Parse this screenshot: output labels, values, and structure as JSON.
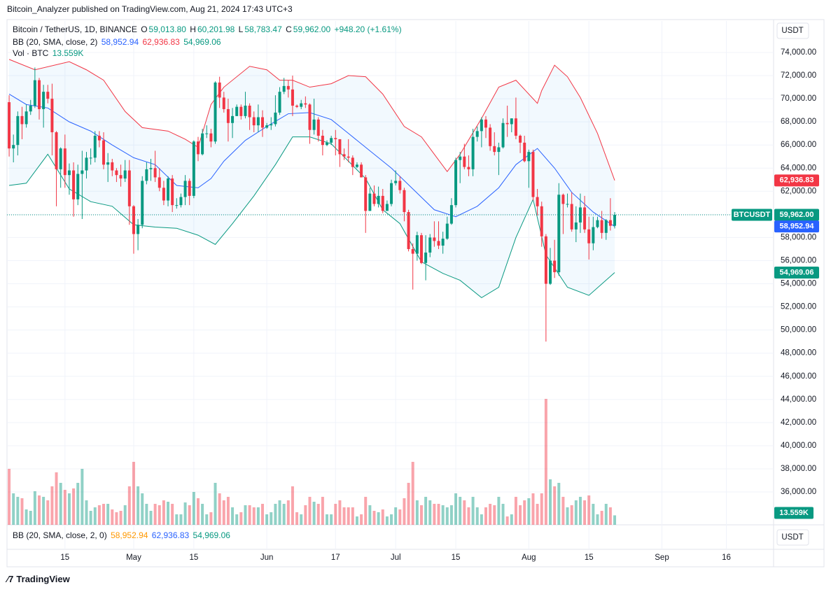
{
  "header": {
    "publisher": "Bitcoin_Analyzer published on TradingView.com, Aug 21, 2024 17:43 UTC+3",
    "symbol": "Bitcoin / TetherUS, 1D, BINANCE",
    "ohlc": [
      {
        "key": "O",
        "value": "59,013.80"
      },
      {
        "key": "H",
        "value": "60,201.98"
      },
      {
        "key": "L",
        "value": "58,783.47"
      },
      {
        "key": "C",
        "value": "59,962.00"
      }
    ],
    "change": "+948.20 (+1.61%)",
    "bb_label": "BB (20, SMA, close, 2)",
    "bb_values": [
      "58,952.94",
      "62,936.83",
      "54,969.06"
    ],
    "vol_label": "Vol · BTC",
    "vol_value": "13.559K",
    "lower_label": "BB (20, SMA, close, 2, 0)",
    "currency": "USDT",
    "symbol_badge": "BTCUSDT",
    "price_badge": "59,962.00",
    "brand": "TradingView"
  },
  "chart_data": {
    "type": "candlestick",
    "up_color": "#089981",
    "down_color": "#f23645",
    "x": [
      "2024-04-02",
      "2024-04-03",
      "2024-04-04",
      "2024-04-05",
      "2024-04-06",
      "2024-04-07",
      "2024-04-08",
      "2024-04-09",
      "2024-04-10",
      "2024-04-11",
      "2024-04-12",
      "2024-04-13",
      "2024-04-14",
      "2024-04-15",
      "2024-04-16",
      "2024-04-17",
      "2024-04-18",
      "2024-04-19",
      "2024-04-20",
      "2024-04-21",
      "2024-04-22",
      "2024-04-23",
      "2024-04-24",
      "2024-04-25",
      "2024-04-26",
      "2024-04-27",
      "2024-04-28",
      "2024-04-29",
      "2024-04-30",
      "2024-05-01",
      "2024-05-02",
      "2024-05-03",
      "2024-05-04",
      "2024-05-05",
      "2024-05-06",
      "2024-05-07",
      "2024-05-08",
      "2024-05-09",
      "2024-05-10",
      "2024-05-11",
      "2024-05-12",
      "2024-05-13",
      "2024-05-14",
      "2024-05-15",
      "2024-05-16",
      "2024-05-17",
      "2024-05-18",
      "2024-05-19",
      "2024-05-20",
      "2024-05-21",
      "2024-05-22",
      "2024-05-23",
      "2024-05-24",
      "2024-05-25",
      "2024-05-26",
      "2024-05-27",
      "2024-05-28",
      "2024-05-29",
      "2024-05-30",
      "2024-05-31",
      "2024-06-01",
      "2024-06-02",
      "2024-06-03",
      "2024-06-04",
      "2024-06-05",
      "2024-06-06",
      "2024-06-07",
      "2024-06-08",
      "2024-06-09",
      "2024-06-10",
      "2024-06-11",
      "2024-06-12",
      "2024-06-13",
      "2024-06-14",
      "2024-06-15",
      "2024-06-16",
      "2024-06-17",
      "2024-06-18",
      "2024-06-19",
      "2024-06-20",
      "2024-06-21",
      "2024-06-22",
      "2024-06-23",
      "2024-06-24",
      "2024-06-25",
      "2024-06-26",
      "2024-06-27",
      "2024-06-28",
      "2024-06-29",
      "2024-06-30",
      "2024-07-01",
      "2024-07-02",
      "2024-07-03",
      "2024-07-04",
      "2024-07-05",
      "2024-07-06",
      "2024-07-07",
      "2024-07-08",
      "2024-07-09",
      "2024-07-10",
      "2024-07-11",
      "2024-07-12",
      "2024-07-13",
      "2024-07-14",
      "2024-07-15",
      "2024-07-16",
      "2024-07-17",
      "2024-07-18",
      "2024-07-19",
      "2024-07-20",
      "2024-07-21",
      "2024-07-22",
      "2024-07-23",
      "2024-07-24",
      "2024-07-25",
      "2024-07-26",
      "2024-07-27",
      "2024-07-28",
      "2024-07-29",
      "2024-07-30",
      "2024-07-31",
      "2024-08-01",
      "2024-08-02",
      "2024-08-03",
      "2024-08-04",
      "2024-08-05",
      "2024-08-06",
      "2024-08-07",
      "2024-08-08",
      "2024-08-09",
      "2024-08-10",
      "2024-08-11",
      "2024-08-12",
      "2024-08-13",
      "2024-08-14",
      "2024-08-15",
      "2024-08-16",
      "2024-08-17",
      "2024-08-18",
      "2024-08-19",
      "2024-08-20",
      "2024-08-21"
    ],
    "open": [
      69700,
      65700,
      66000,
      68500,
      67800,
      68900,
      69400,
      71600,
      69100,
      70600,
      70000,
      67100,
      63900,
      65700,
      63400,
      63800,
      61300,
      63500,
      63800,
      64900,
      64900,
      66800,
      66400,
      64300,
      64500,
      63800,
      63400,
      63100,
      63800,
      60700,
      58300,
      59100,
      62900,
      63900,
      64000,
      63200,
      62300,
      61200,
      63100,
      60800,
      60800,
      61500,
      62900,
      61600,
      66300,
      65200,
      67000,
      67000,
      66300,
      71400,
      70100,
      69100,
      67900,
      68500,
      69300,
      68500,
      69400,
      68400,
      67700,
      68400,
      67500,
      67700,
      67800,
      68800,
      70600,
      71100,
      70800,
      69400,
      69300,
      69600,
      69500,
      67300,
      68200,
      66800,
      66000,
      66200,
      66600,
      66500,
      65200,
      65000,
      64900,
      64100,
      64300,
      63200,
      60300,
      61800,
      60900,
      61600,
      60300,
      60900,
      62700,
      62900,
      62100,
      60200,
      57000,
      56600,
      58200,
      55800,
      56700,
      58000,
      57700,
      57300,
      57900,
      59200,
      60800,
      64700,
      65000,
      64100,
      63900,
      66700,
      67200,
      68200,
      67500,
      65900,
      65400,
      65800,
      67900,
      67800,
      68300,
      66800,
      66200,
      64600,
      65400,
      61500,
      60700,
      58100,
      54000,
      56000,
      55000,
      61700,
      60900,
      60900,
      58700,
      59300,
      60600,
      58700,
      57500,
      58900,
      59500,
      58400,
      59500,
      59013.8
    ],
    "high": [
      70300,
      66900,
      68900,
      69300,
      69500,
      69900,
      72700,
      71800,
      71200,
      71200,
      71300,
      67200,
      65800,
      66900,
      64400,
      64500,
      64300,
      65500,
      65400,
      65700,
      67200,
      67200,
      67100,
      65300,
      64800,
      64000,
      64300,
      64700,
      64700,
      60800,
      59600,
      63300,
      64500,
      64800,
      65500,
      64000,
      62900,
      63300,
      63400,
      61400,
      61800,
      63400,
      63100,
      66400,
      66700,
      67400,
      67700,
      67400,
      71500,
      71900,
      70600,
      70000,
      69200,
      69500,
      69500,
      70600,
      69600,
      68900,
      69500,
      69000,
      67900,
      68400,
      70300,
      71000,
      71800,
      71600,
      72000,
      69500,
      69900,
      70200,
      69600,
      70000,
      68400,
      67300,
      66400,
      66800,
      67300,
      66500,
      65700,
      66500,
      65100,
      64500,
      64500,
      63400,
      62300,
      62500,
      62400,
      62200,
      61200,
      63000,
      63800,
      63300,
      62300,
      60400,
      57500,
      58500,
      58400,
      58200,
      58300,
      59400,
      59400,
      58500,
      59800,
      61400,
      64900,
      65400,
      66100,
      65100,
      67400,
      67600,
      68400,
      68500,
      67800,
      67100,
      66200,
      68300,
      69400,
      68300,
      70100,
      66900,
      66800,
      65600,
      65600,
      62200,
      61100,
      58300,
      57100,
      57800,
      62700,
      61800,
      61800,
      61900,
      60700,
      61800,
      61600,
      59800,
      59800,
      59800,
      60300,
      59600,
      61400,
      60201.98
    ],
    "low": [
      65000,
      64500,
      65100,
      66500,
      67500,
      68600,
      69200,
      68200,
      67500,
      69600,
      65100,
      60700,
      62300,
      62300,
      61700,
      59800,
      60800,
      59600,
      63100,
      64300,
      64500,
      65800,
      63900,
      62800,
      63300,
      62800,
      62400,
      62800,
      59100,
      56600,
      56900,
      58800,
      62600,
      62900,
      62800,
      62000,
      60800,
      60700,
      60200,
      60500,
      60600,
      60800,
      60800,
      61400,
      64600,
      65100,
      66600,
      65800,
      66100,
      69200,
      68800,
      66300,
      66600,
      68500,
      68200,
      68300,
      67300,
      67100,
      67100,
      66700,
      67400,
      67300,
      67600,
      68600,
      70400,
      70100,
      68500,
      69200,
      69100,
      69200,
      66100,
      66900,
      66300,
      65100,
      65900,
      66000,
      65100,
      64100,
      64700,
      64500,
      63400,
      64000,
      63200,
      58400,
      60300,
      60700,
      60600,
      60100,
      60300,
      60700,
      62500,
      61800,
      59400,
      56800,
      53500,
      56000,
      55700,
      54300,
      56300,
      57200,
      57000,
      56600,
      57800,
      59100,
      60600,
      62700,
      63900,
      63300,
      63300,
      66300,
      65800,
      66600,
      65500,
      65100,
      63400,
      65700,
      66700,
      67100,
      66500,
      65300,
      64500,
      62300,
      61200,
      59900,
      57200,
      49000,
      53900,
      54500,
      54700,
      58300,
      60600,
      58500,
      57600,
      58400,
      58400,
      56100,
      56900,
      58800,
      57900,
      57800,
      58600,
      58783.47
    ],
    "close": [
      65700,
      66000,
      68500,
      67800,
      68900,
      69400,
      71600,
      69100,
      70600,
      70000,
      67100,
      63900,
      65700,
      63400,
      63800,
      61300,
      63500,
      63800,
      64900,
      64900,
      66800,
      66400,
      64300,
      64500,
      63800,
      63400,
      63100,
      63800,
      60700,
      58300,
      59100,
      62900,
      63900,
      64000,
      63200,
      62300,
      61200,
      63100,
      60800,
      60800,
      61500,
      62900,
      61600,
      66300,
      65200,
      67000,
      67000,
      66300,
      71400,
      70100,
      69100,
      67900,
      68500,
      69300,
      68500,
      69400,
      68400,
      67700,
      68400,
      67500,
      67700,
      67800,
      68800,
      70600,
      71100,
      70800,
      69400,
      69300,
      69600,
      69500,
      67300,
      68200,
      66800,
      66000,
      66200,
      66600,
      66500,
      65200,
      65000,
      64900,
      64100,
      64300,
      63200,
      60300,
      61800,
      60900,
      61600,
      60300,
      60900,
      62700,
      62900,
      62100,
      60200,
      57000,
      56600,
      58200,
      55800,
      56700,
      58000,
      57700,
      57300,
      57900,
      59200,
      60800,
      64700,
      65000,
      64100,
      63900,
      66700,
      67200,
      68200,
      67500,
      65900,
      65400,
      65800,
      67900,
      67800,
      68300,
      66800,
      66200,
      64600,
      65400,
      61500,
      60700,
      58100,
      54000,
      56000,
      55000,
      61700,
      60900,
      60900,
      58700,
      59300,
      60600,
      58700,
      57500,
      58900,
      59500,
      58400,
      59500,
      59013.8,
      59962
    ],
    "volume": [
      80000,
      45000,
      40000,
      38000,
      22000,
      20000,
      48000,
      42000,
      40000,
      35000,
      55000,
      75000,
      60000,
      50000,
      45000,
      52000,
      60000,
      80000,
      35000,
      20000,
      25000,
      28000,
      30000,
      30000,
      22000,
      18000,
      20000,
      28000,
      55000,
      90000,
      55000,
      45000,
      30000,
      20000,
      30000,
      28000,
      35000,
      33000,
      30000,
      15000,
      15000,
      32000,
      28000,
      47000,
      38000,
      30000,
      15000,
      18000,
      60000,
      45000,
      35000,
      40000,
      25000,
      15000,
      18000,
      28000,
      28000,
      25000,
      25000,
      30000,
      15000,
      18000,
      30000,
      35000,
      30000,
      35000,
      55000,
      18000,
      15000,
      28000,
      40000,
      33000,
      30000,
      40000,
      15000,
      15000,
      30000,
      35000,
      25000,
      25000,
      25000,
      12000,
      15000,
      40000,
      28000,
      20000,
      18000,
      22000,
      12000,
      15000,
      25000,
      22000,
      38000,
      60000,
      90000,
      35000,
      28000,
      40000,
      35000,
      30000,
      30000,
      28000,
      25000,
      28000,
      45000,
      40000,
      35000,
      25000,
      40000,
      25000,
      15000,
      25000,
      30000,
      28000,
      40000,
      30000,
      12000,
      15000,
      40000,
      28000,
      35000,
      38000,
      45000,
      30000,
      45000,
      180000,
      65000,
      55000,
      60000,
      40000,
      25000,
      28000,
      35000,
      40000,
      35000,
      42000,
      30000,
      15000,
      20000,
      30000,
      25000,
      13559
    ],
    "bands": [
      {
        "color": "#2962ff",
        "x": [
          "2024-04-02",
          "2024-04-06",
          "2024-04-11",
          "2024-04-16",
          "2024-04-21",
          "2024-04-26",
          "2024-05-01",
          "2024-05-06",
          "2024-05-11",
          "2024-05-16",
          "2024-05-19",
          "2024-05-22",
          "2024-05-27",
          "2024-06-01",
          "2024-06-06",
          "2024-06-11",
          "2024-06-16",
          "2024-06-20",
          "2024-06-25",
          "2024-06-30",
          "2024-07-05",
          "2024-07-10",
          "2024-07-15",
          "2024-07-20",
          "2024-07-25",
          "2024-07-29",
          "2024-08-03",
          "2024-08-07",
          "2024-08-11",
          "2024-08-16",
          "2024-08-21"
        ],
        "values": [
          70400,
          69500,
          69200,
          68000,
          67200,
          66000,
          64900,
          64300,
          62500,
          62300,
          63100,
          64600,
          66400,
          67600,
          68700,
          68800,
          68200,
          67000,
          65500,
          64000,
          62200,
          60400,
          59800,
          60700,
          62300,
          64300,
          65700,
          64000,
          61900,
          60200,
          58952.94
        ]
      },
      {
        "color": "#f23645",
        "x": [
          "2024-04-02",
          "2024-04-08",
          "2024-04-16",
          "2024-04-20",
          "2024-04-24",
          "2024-04-29",
          "2024-05-03",
          "2024-05-09",
          "2024-05-13",
          "2024-05-16",
          "2024-05-19",
          "2024-05-22",
          "2024-05-28",
          "2024-06-01",
          "2024-06-04",
          "2024-06-07",
          "2024-06-11",
          "2024-06-16",
          "2024-06-20",
          "2024-06-24",
          "2024-06-28",
          "2024-07-03",
          "2024-07-07",
          "2024-07-10",
          "2024-07-13",
          "2024-07-16",
          "2024-07-21",
          "2024-07-25",
          "2024-07-29",
          "2024-08-03",
          "2024-08-04",
          "2024-08-07",
          "2024-08-10",
          "2024-08-13",
          "2024-08-17",
          "2024-08-21"
        ],
        "values": [
          73400,
          72500,
          73200,
          72500,
          71600,
          68900,
          67500,
          67200,
          66500,
          65800,
          69500,
          71000,
          72800,
          72500,
          71600,
          71600,
          71000,
          71300,
          72000,
          71900,
          70400,
          67600,
          66700,
          65200,
          63700,
          65200,
          68300,
          71000,
          71600,
          69600,
          70700,
          72900,
          71900,
          70100,
          67000,
          62936.83
        ]
      },
      {
        "color": "#089981",
        "x": [
          "2024-04-02",
          "2024-04-06",
          "2024-04-11",
          "2024-04-16",
          "2024-04-21",
          "2024-04-26",
          "2024-05-01",
          "2024-05-06",
          "2024-05-11",
          "2024-05-16",
          "2024-05-20",
          "2024-05-24",
          "2024-05-29",
          "2024-06-03",
          "2024-06-07",
          "2024-06-11",
          "2024-06-16",
          "2024-06-20",
          "2024-06-24",
          "2024-06-28",
          "2024-07-02",
          "2024-07-07",
          "2024-07-12",
          "2024-07-16",
          "2024-07-21",
          "2024-07-25",
          "2024-07-29",
          "2024-08-02",
          "2024-08-05",
          "2024-08-10",
          "2024-08-15",
          "2024-08-21"
        ],
        "values": [
          62500,
          62700,
          65200,
          62200,
          61100,
          60700,
          59100,
          58900,
          58800,
          58200,
          57400,
          59200,
          61600,
          64300,
          66700,
          66700,
          66100,
          64600,
          63100,
          60400,
          59200,
          55900,
          54900,
          54300,
          52800,
          53700,
          58000,
          61300,
          56500,
          53700,
          53000,
          54969.06
        ]
      }
    ],
    "band_fill": "rgba(33,150,243,0.06)",
    "xlim": [
      "2024-04-01T12:00",
      "2024-09-27T00:00"
    ],
    "xticks": [
      {
        "value": "2024-04-15",
        "label": "15"
      },
      {
        "value": "2024-05-01",
        "label": "May"
      },
      {
        "value": "2024-05-15",
        "label": "15"
      },
      {
        "value": "2024-06-01",
        "label": "Jun"
      },
      {
        "value": "2024-06-17",
        "label": "17"
      },
      {
        "value": "2024-07-01",
        "label": "Jul"
      },
      {
        "value": "2024-07-15",
        "label": "15"
      },
      {
        "value": "2024-08-01",
        "label": "Aug"
      },
      {
        "value": "2024-08-15",
        "label": "15"
      },
      {
        "value": "2024-09-01",
        "label": "Sep"
      },
      {
        "value": "2024-09-16",
        "label": "16"
      }
    ],
    "ylim": [
      33160,
      76720
    ],
    "yticks": [
      {
        "value": 36000,
        "label": "36,000.00"
      },
      {
        "value": 38000,
        "label": "38,000.00"
      },
      {
        "value": 40000,
        "label": "40,000.00"
      },
      {
        "value": 42000,
        "label": "42,000.00"
      },
      {
        "value": 44000,
        "label": "44,000.00"
      },
      {
        "value": 46000,
        "label": "46,000.00"
      },
      {
        "value": 48000,
        "label": "48,000.00"
      },
      {
        "value": 50000,
        "label": "50,000.00"
      },
      {
        "value": 52000,
        "label": "52,000.00"
      },
      {
        "value": 54000,
        "label": "54,000.00"
      },
      {
        "value": 56000,
        "label": "56,000.00"
      },
      {
        "value": 58000,
        "label": "58,000.00"
      },
      {
        "value": 60000,
        "label": "60,000.00"
      },
      {
        "value": 62000,
        "label": "62,000.00"
      },
      {
        "value": 64000,
        "label": "64,000.00"
      },
      {
        "value": 66000,
        "label": "66,000.00"
      },
      {
        "value": 68000,
        "label": "68,000.00"
      },
      {
        "value": 70000,
        "label": "70,000.00"
      },
      {
        "value": 72000,
        "label": "72,000.00"
      },
      {
        "value": 74000,
        "label": "74,000.00"
      }
    ],
    "volume_lim": [
      0,
      720000
    ],
    "grid": true
  }
}
